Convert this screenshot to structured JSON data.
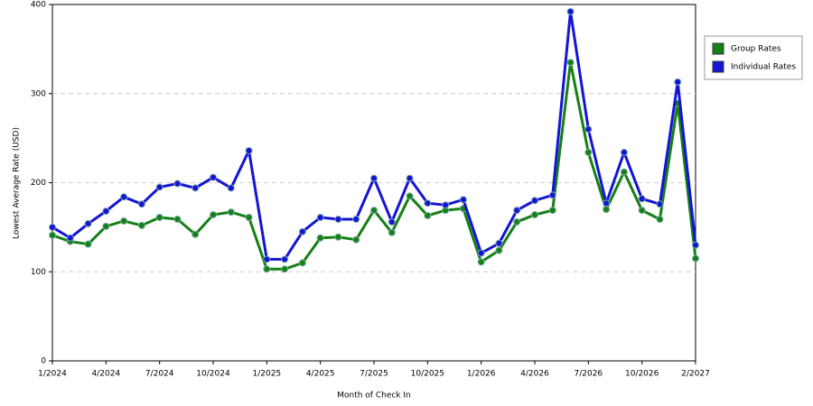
{
  "chart_data": {
    "type": "line",
    "x_label": "Month of Check In",
    "y_label": "Lowest Average Rate (USD)",
    "categories": [
      "1/2024",
      null,
      null,
      "4/2024",
      null,
      null,
      "7/2024",
      null,
      null,
      "10/2024",
      null,
      null,
      "1/2025",
      null,
      null,
      "4/2025",
      null,
      null,
      "7/2025",
      null,
      null,
      "10/2025",
      null,
      null,
      "1/2026",
      null,
      null,
      "4/2026",
      null,
      null,
      "7/2026",
      null,
      null,
      "10/2026",
      null,
      null,
      "2/2027"
    ],
    "series": [
      {
        "name": "Group Rates",
        "color": "#158015",
        "values": [
          141,
          134,
          131,
          151,
          157,
          152,
          161,
          159,
          142,
          164,
          167,
          161,
          103,
          103,
          110,
          138,
          139,
          136,
          169,
          144,
          185,
          163,
          169,
          171,
          111,
          124,
          156,
          164,
          169,
          335,
          234,
          170,
          212,
          169,
          159,
          289,
          115
        ]
      },
      {
        "name": "Individual Rates",
        "color": "#1414d4",
        "values": [
          150,
          138,
          154,
          168,
          184,
          176,
          195,
          199,
          194,
          206,
          194,
          236,
          114,
          114,
          145,
          161,
          159,
          159,
          205,
          156,
          205,
          177,
          175,
          181,
          121,
          132,
          169,
          180,
          186,
          392,
          260,
          177,
          234,
          182,
          176,
          313,
          130
        ]
      }
    ],
    "ylim": [
      0,
      400
    ],
    "yticks": [
      0,
      100,
      200,
      300,
      400
    ],
    "grid": true,
    "legend": "right"
  }
}
